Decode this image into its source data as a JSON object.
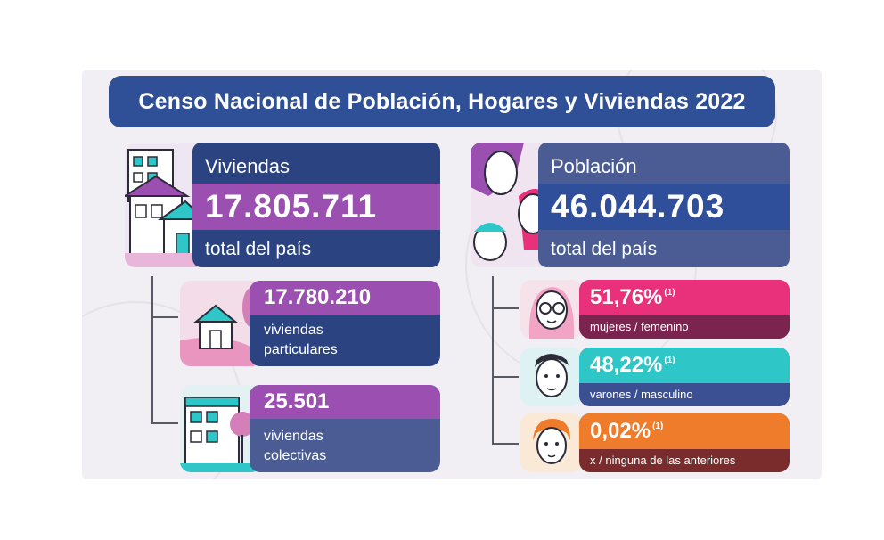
{
  "header": {
    "title": "Censo Nacional de Población, Hogares y Viviendas 2022"
  },
  "viviendas": {
    "label": "Viviendas",
    "value": "17.805.711",
    "sublabel": "total del país"
  },
  "poblacion": {
    "label": "Población",
    "value": "46.044.703",
    "sublabel": "total del país"
  },
  "viviendas_particulares": {
    "value": "17.780.210",
    "line1": "viviendas",
    "line2": "particulares"
  },
  "viviendas_colectivas": {
    "value": "25.501",
    "line1": "viviendas",
    "line2": "colectivas"
  },
  "mujeres": {
    "value": "51,76%",
    "note": "(1)",
    "label": "mujeres / femenino"
  },
  "varones": {
    "value": "48,22%",
    "note": "(1)",
    "label": "varones / masculino"
  },
  "ninguna": {
    "value": "0,02%",
    "note": "(1)",
    "label": "x / ninguna de las anteriores"
  },
  "colors": {
    "title_bg": "#2f4f96",
    "purple": "#9b4fb0",
    "navy": "#2c4381",
    "slate": "#4a5c93",
    "blue": "#304f9a",
    "pink": "#e8317a",
    "pink_dark": "#7c2450",
    "teal": "#2fc6c8",
    "teal_dark": "#3b4f93",
    "orange": "#ee7c2a",
    "orange_dark": "#7a2c2c"
  },
  "icons": [
    "houses-illustration",
    "house-illustration",
    "building-illustration",
    "faces-illustration",
    "woman-face-icon",
    "man-face-icon",
    "person-face-icon"
  ]
}
